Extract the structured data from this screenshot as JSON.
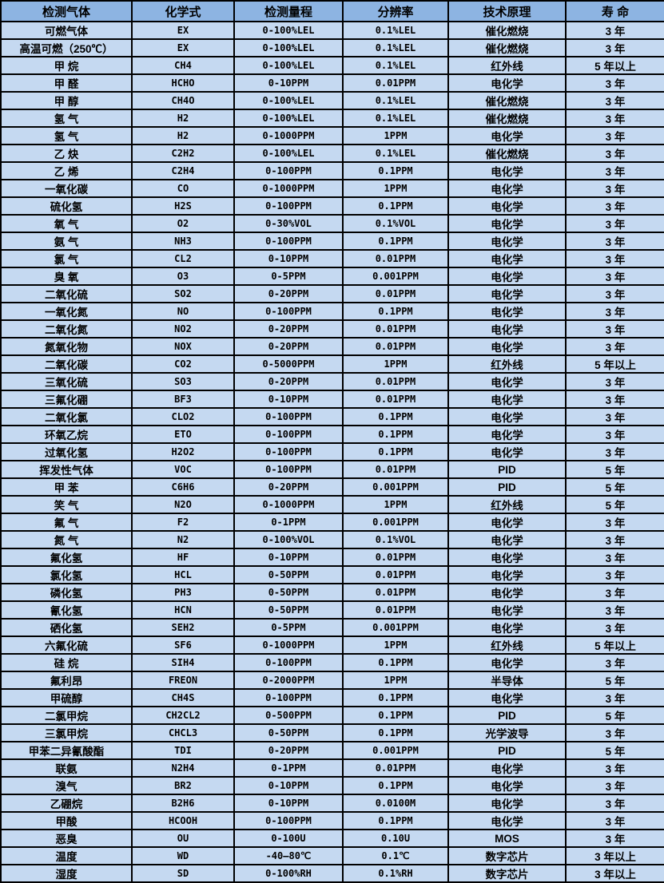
{
  "colors": {
    "header_bg": "#8db4e2",
    "row_bg": "#c5d9f1",
    "border": "#000000",
    "text": "#000000"
  },
  "table": {
    "columns": [
      {
        "key": "gas",
        "label": "检测气体"
      },
      {
        "key": "formula",
        "label": "化学式"
      },
      {
        "key": "range",
        "label": "检测量程"
      },
      {
        "key": "resolution",
        "label": "分辨率"
      },
      {
        "key": "principle",
        "label": "技术原理"
      },
      {
        "key": "life",
        "label": "寿 命"
      }
    ],
    "rows": [
      {
        "gas": "可燃气体",
        "formula": "EX",
        "range": "0-100%LEL",
        "resolution": "0.1%LEL",
        "principle": "催化燃烧",
        "life": "3 年"
      },
      {
        "gas": "高温可燃（250℃）",
        "formula": "EX",
        "range": "0-100%LEL",
        "resolution": "0.1%LEL",
        "principle": "催化燃烧",
        "life": "3 年"
      },
      {
        "gas": "甲 烷",
        "formula": "CH4",
        "range": "0-100%LEL",
        "resolution": "0.1%LEL",
        "principle": "红外线",
        "life": "5 年以上"
      },
      {
        "gas": "甲 醛",
        "formula": "HCHO",
        "range": "0-10PPM",
        "resolution": "0.01PPM",
        "principle": "电化学",
        "life": "3 年"
      },
      {
        "gas": "甲 醇",
        "formula": "CH4O",
        "range": "0-100%LEL",
        "resolution": "0.1%LEL",
        "principle": "催化燃烧",
        "life": "3 年"
      },
      {
        "gas": "氢 气",
        "formula": "H2",
        "range": "0-100%LEL",
        "resolution": "0.1%LEL",
        "principle": "催化燃烧",
        "life": "3 年"
      },
      {
        "gas": "氢 气",
        "formula": "H2",
        "range": "0-1000PPM",
        "resolution": "1PPM",
        "principle": "电化学",
        "life": "3 年"
      },
      {
        "gas": "乙 炔",
        "formula": "C2H2",
        "range": "0-100%LEL",
        "resolution": "0.1%LEL",
        "principle": "催化燃烧",
        "life": "3 年"
      },
      {
        "gas": "乙 烯",
        "formula": "C2H4",
        "range": "0-100PPM",
        "resolution": "0.1PPM",
        "principle": "电化学",
        "life": "3 年"
      },
      {
        "gas": "一氧化碳",
        "formula": "CO",
        "range": "0-1000PPM",
        "resolution": "1PPM",
        "principle": "电化学",
        "life": "3 年"
      },
      {
        "gas": "硫化氢",
        "formula": "H2S",
        "range": "0-100PPM",
        "resolution": "0.1PPM",
        "principle": "电化学",
        "life": "3 年"
      },
      {
        "gas": "氧 气",
        "formula": "O2",
        "range": "0-30%VOL",
        "resolution": "0.1%VOL",
        "principle": "电化学",
        "life": "3 年"
      },
      {
        "gas": "氨 气",
        "formula": "NH3",
        "range": "0-100PPM",
        "resolution": "0.1PPM",
        "principle": "电化学",
        "life": "3 年"
      },
      {
        "gas": "氯 气",
        "formula": "CL2",
        "range": "0-10PPM",
        "resolution": "0.01PPM",
        "principle": "电化学",
        "life": "3 年"
      },
      {
        "gas": "臭 氧",
        "formula": "O3",
        "range": "0-5PPM",
        "resolution": "0.001PPM",
        "principle": "电化学",
        "life": "3 年"
      },
      {
        "gas": "二氧化硫",
        "formula": "SO2",
        "range": "0-20PPM",
        "resolution": "0.01PPM",
        "principle": "电化学",
        "life": "3 年"
      },
      {
        "gas": "一氧化氮",
        "formula": "NO",
        "range": "0-100PPM",
        "resolution": "0.1PPM",
        "principle": "电化学",
        "life": "3 年"
      },
      {
        "gas": "二氧化氮",
        "formula": "NO2",
        "range": "0-20PPM",
        "resolution": "0.01PPM",
        "principle": "电化学",
        "life": "3 年"
      },
      {
        "gas": "氮氧化物",
        "formula": "NOX",
        "range": "0-20PPM",
        "resolution": "0.01PPM",
        "principle": "电化学",
        "life": "3 年"
      },
      {
        "gas": "二氧化碳",
        "formula": "CO2",
        "range": "0-5000PPM",
        "resolution": "1PPM",
        "principle": "红外线",
        "life": "5 年以上"
      },
      {
        "gas": "三氧化硫",
        "formula": "SO3",
        "range": "0-20PPM",
        "resolution": "0.01PPM",
        "principle": "电化学",
        "life": "3 年"
      },
      {
        "gas": "三氟化硼",
        "formula": "BF3",
        "range": "0-10PPM",
        "resolution": "0.01PPM",
        "principle": "电化学",
        "life": "3 年"
      },
      {
        "gas": "二氧化氯",
        "formula": "CLO2",
        "range": "0-100PPM",
        "resolution": "0.1PPM",
        "principle": "电化学",
        "life": "3 年"
      },
      {
        "gas": "环氧乙烷",
        "formula": "ETO",
        "range": "0-100PPM",
        "resolution": "0.1PPM",
        "principle": "电化学",
        "life": "3 年"
      },
      {
        "gas": "过氧化氢",
        "formula": "H2O2",
        "range": "0-100PPM",
        "resolution": "0.1PPM",
        "principle": "电化学",
        "life": "3 年"
      },
      {
        "gas": "挥发性气体",
        "formula": "VOC",
        "range": "0-100PPM",
        "resolution": "0.01PPM",
        "principle": "PID",
        "life": "5 年"
      },
      {
        "gas": "甲 苯",
        "formula": "C6H6",
        "range": "0-20PPM",
        "resolution": "0.001PPM",
        "principle": "PID",
        "life": "5 年"
      },
      {
        "gas": "笑 气",
        "formula": "N2O",
        "range": "0-1000PPM",
        "resolution": "1PPM",
        "principle": "红外线",
        "life": "5 年"
      },
      {
        "gas": "氟 气",
        "formula": "F2",
        "range": "0-1PPM",
        "resolution": "0.001PPM",
        "principle": "电化学",
        "life": "3 年"
      },
      {
        "gas": "氮 气",
        "formula": "N2",
        "range": "0-100%VOL",
        "resolution": "0.1%VOL",
        "principle": "电化学",
        "life": "3 年"
      },
      {
        "gas": "氟化氢",
        "formula": "HF",
        "range": "0-10PPM",
        "resolution": "0.01PPM",
        "principle": "电化学",
        "life": "3 年"
      },
      {
        "gas": "氯化氢",
        "formula": "HCL",
        "range": "0-50PPM",
        "resolution": "0.01PPM",
        "principle": "电化学",
        "life": "3 年"
      },
      {
        "gas": "磷化氢",
        "formula": "PH3",
        "range": "0-50PPM",
        "resolution": "0.01PPM",
        "principle": "电化学",
        "life": "3 年"
      },
      {
        "gas": "氰化氢",
        "formula": "HCN",
        "range": "0-50PPM",
        "resolution": "0.01PPM",
        "principle": "电化学",
        "life": "3 年"
      },
      {
        "gas": "硒化氢",
        "formula": "SEH2",
        "range": "0-5PPM",
        "resolution": "0.001PPM",
        "principle": "电化学",
        "life": "3 年"
      },
      {
        "gas": "六氟化硫",
        "formula": "SF6",
        "range": "0-1000PPM",
        "resolution": "1PPM",
        "principle": "红外线",
        "life": "5 年以上"
      },
      {
        "gas": "硅 烷",
        "formula": "SIH4",
        "range": "0-100PPM",
        "resolution": "0.1PPM",
        "principle": "电化学",
        "life": "3 年"
      },
      {
        "gas": "氟利昂",
        "formula": "FREON",
        "range": "0-2000PPM",
        "resolution": "1PPM",
        "principle": "半导体",
        "life": "5 年"
      },
      {
        "gas": "甲硫醇",
        "formula": "CH4S",
        "range": "0-100PPM",
        "resolution": "0.1PPM",
        "principle": "电化学",
        "life": "3 年"
      },
      {
        "gas": "二氯甲烷",
        "formula": "CH2CL2",
        "range": "0-500PPM",
        "resolution": "0.1PPM",
        "principle": "PID",
        "life": "5 年"
      },
      {
        "gas": "三氯甲烷",
        "formula": "CHCL3",
        "range": "0-50PPM",
        "resolution": "0.1PPM",
        "principle": "光学波导",
        "life": "3 年"
      },
      {
        "gas": "甲苯二异氰酸酯",
        "formula": "TDI",
        "range": "0-20PPM",
        "resolution": "0.001PPM",
        "principle": "PID",
        "life": "5 年"
      },
      {
        "gas": "联氨",
        "formula": "N2H4",
        "range": "0-1PPM",
        "resolution": "0.01PPM",
        "principle": "电化学",
        "life": "3 年"
      },
      {
        "gas": "溴气",
        "formula": "BR2",
        "range": "0-10PPM",
        "resolution": "0.1PPM",
        "principle": "电化学",
        "life": "3 年"
      },
      {
        "gas": "乙硼烷",
        "formula": "B2H6",
        "range": "0-10PPM",
        "resolution": "0.0100M",
        "principle": "电化学",
        "life": "3 年"
      },
      {
        "gas": "甲酸",
        "formula": "HCOOH",
        "range": "0-100PPM",
        "resolution": "0.1PPM",
        "principle": "电化学",
        "life": "3 年"
      },
      {
        "gas": "恶臭",
        "formula": "OU",
        "range": "0-100U",
        "resolution": "0.10U",
        "principle": "MOS",
        "life": "3 年"
      },
      {
        "gas": "温度",
        "formula": "WD",
        "range": "-40—80℃",
        "resolution": "0.1℃",
        "principle": "数字芯片",
        "life": "3 年以上"
      },
      {
        "gas": "湿度",
        "formula": "SD",
        "range": "0-100%RH",
        "resolution": "0.1%RH",
        "principle": "数字芯片",
        "life": "3 年以上"
      }
    ]
  }
}
